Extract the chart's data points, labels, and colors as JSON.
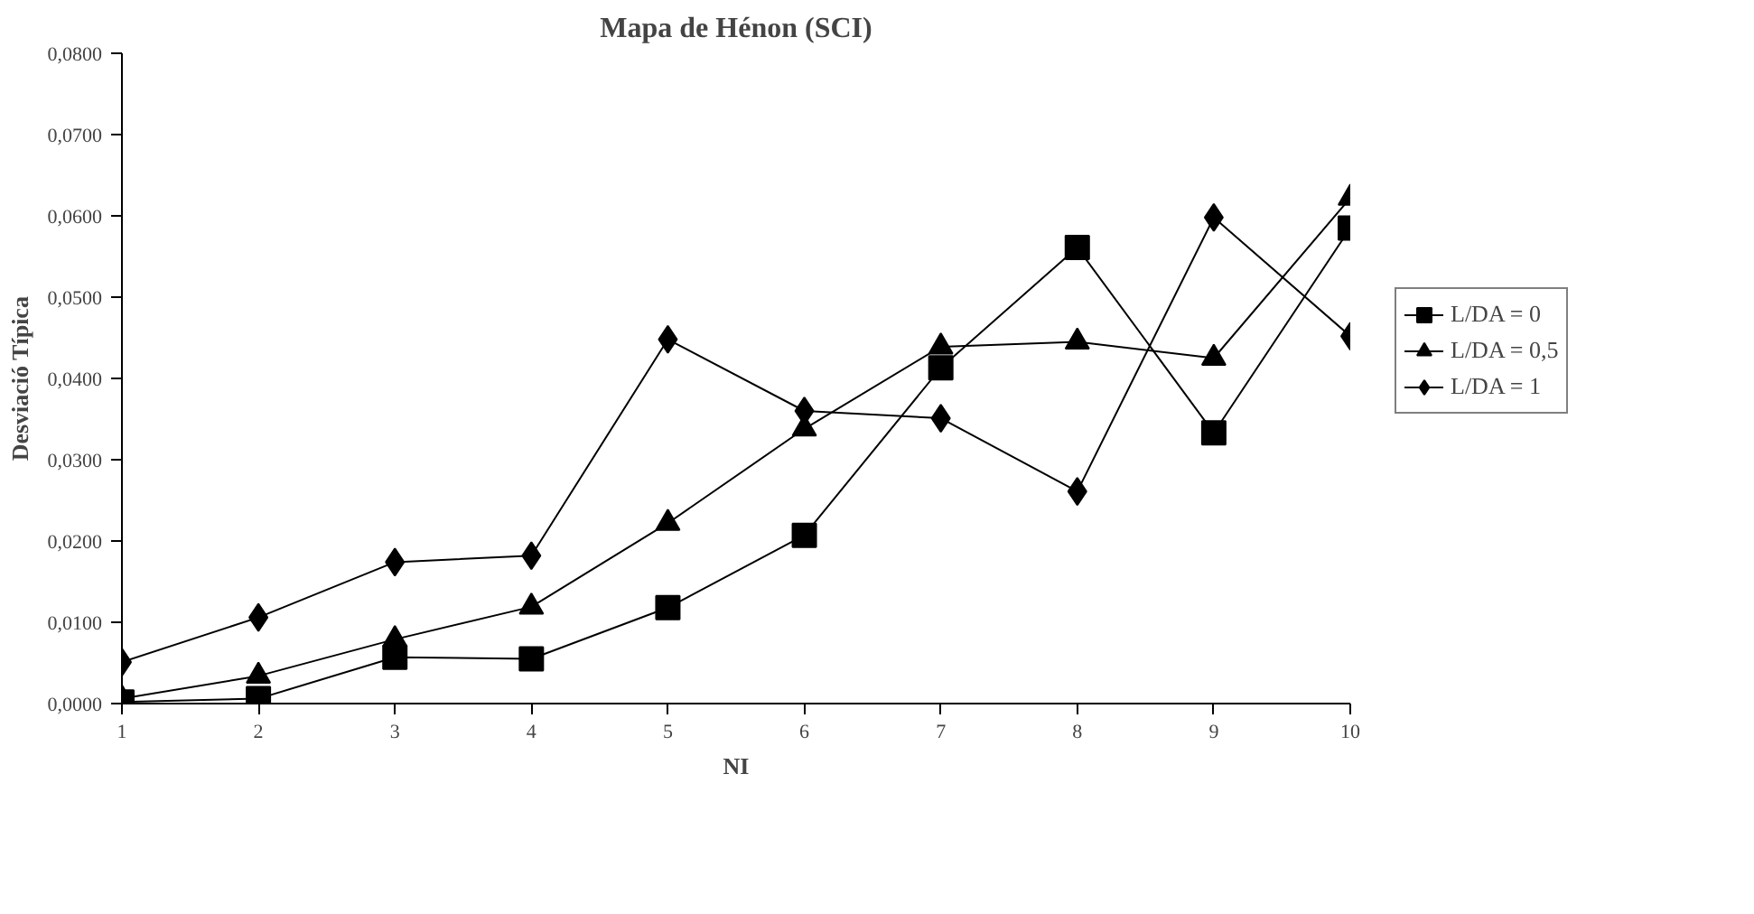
{
  "chart_data": {
    "type": "line",
    "title": "Mapa de Hénon (SCI)",
    "xlabel": "NI",
    "ylabel": "Desviació Típica",
    "x": [
      1,
      2,
      3,
      4,
      5,
      6,
      7,
      8,
      9,
      10
    ],
    "xlim": [
      1,
      10
    ],
    "xticks": [
      1,
      2,
      3,
      4,
      5,
      6,
      7,
      8,
      9,
      10
    ],
    "ylim": [
      0,
      0.08
    ],
    "yticks": [
      {
        "value": 0,
        "label": "0,0000"
      },
      {
        "value": 0.01,
        "label": "0,0100"
      },
      {
        "value": 0.02,
        "label": "0,0200"
      },
      {
        "value": 0.03,
        "label": "0,0300"
      },
      {
        "value": 0.04,
        "label": "0,0400"
      },
      {
        "value": 0.05,
        "label": "0,0500"
      },
      {
        "value": 0.06,
        "label": "0,0600"
      },
      {
        "value": 0.07,
        "label": "0,0700"
      },
      {
        "value": 0.08,
        "label": "0,0800"
      }
    ],
    "grid": false,
    "legend": "right",
    "series": [
      {
        "name": "L/DA = 0",
        "color": "#000000",
        "marker": "square",
        "values": [
          0.0002,
          0.0006,
          0.0057,
          0.0055,
          0.0118,
          0.0207,
          0.0413,
          0.0561,
          0.0333,
          0.0585
        ]
      },
      {
        "name": "L/DA = 0,5",
        "color": "#000000",
        "marker": "triangle",
        "values": [
          0.0006,
          0.0034,
          0.0079,
          0.0119,
          0.0222,
          0.0338,
          0.0439,
          0.0445,
          0.0425,
          0.0622
        ]
      },
      {
        "name": "L/DA = 1",
        "color": "#000000",
        "marker": "diamond",
        "values": [
          0.0051,
          0.0106,
          0.0174,
          0.0182,
          0.0448,
          0.036,
          0.0351,
          0.0261,
          0.0598,
          0.0452
        ]
      }
    ]
  }
}
